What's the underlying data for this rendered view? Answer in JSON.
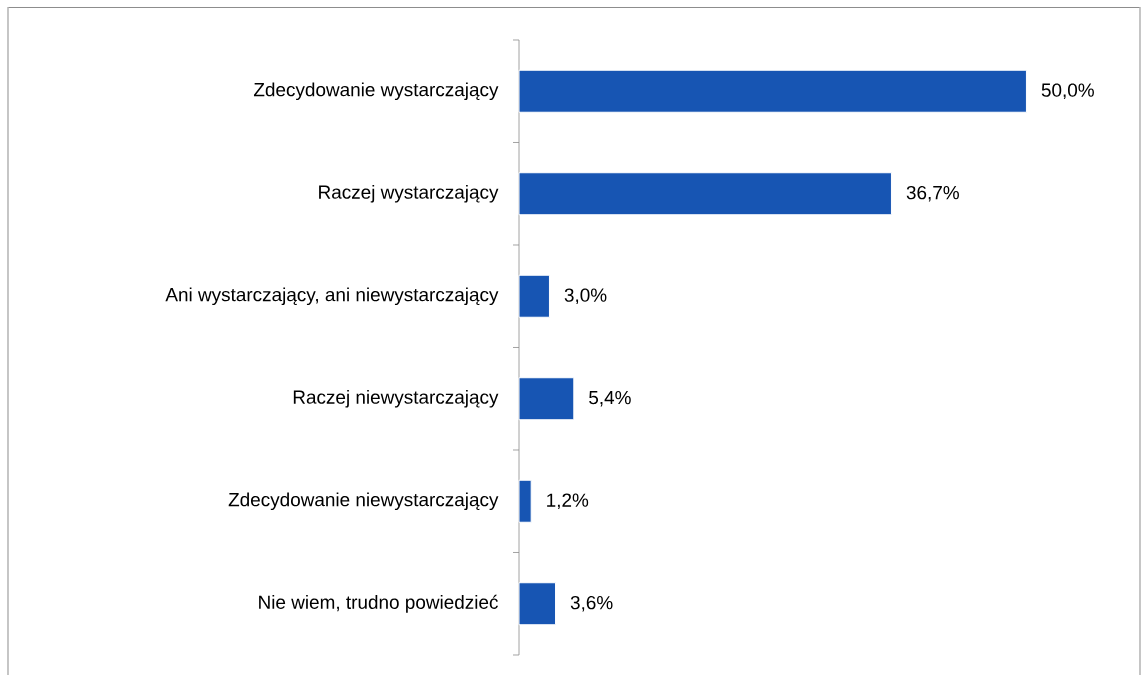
{
  "chart_data": {
    "type": "bar",
    "orientation": "horizontal",
    "categories": [
      "Zdecydowanie wystarczający",
      "Raczej wystarczający",
      "Ani wystarczający, ani niewystarczający",
      "Raczej niewystarczający",
      "Zdecydowanie niewystarczający",
      "Nie wiem, trudno powiedzieć"
    ],
    "values": [
      50.0,
      36.7,
      3.0,
      5.4,
      1.2,
      3.6
    ],
    "value_labels": [
      "50,0%",
      "36,7%",
      "3,0%",
      "5,4%",
      "1,2%",
      "3,6%"
    ],
    "color": "#1755b3"
  }
}
